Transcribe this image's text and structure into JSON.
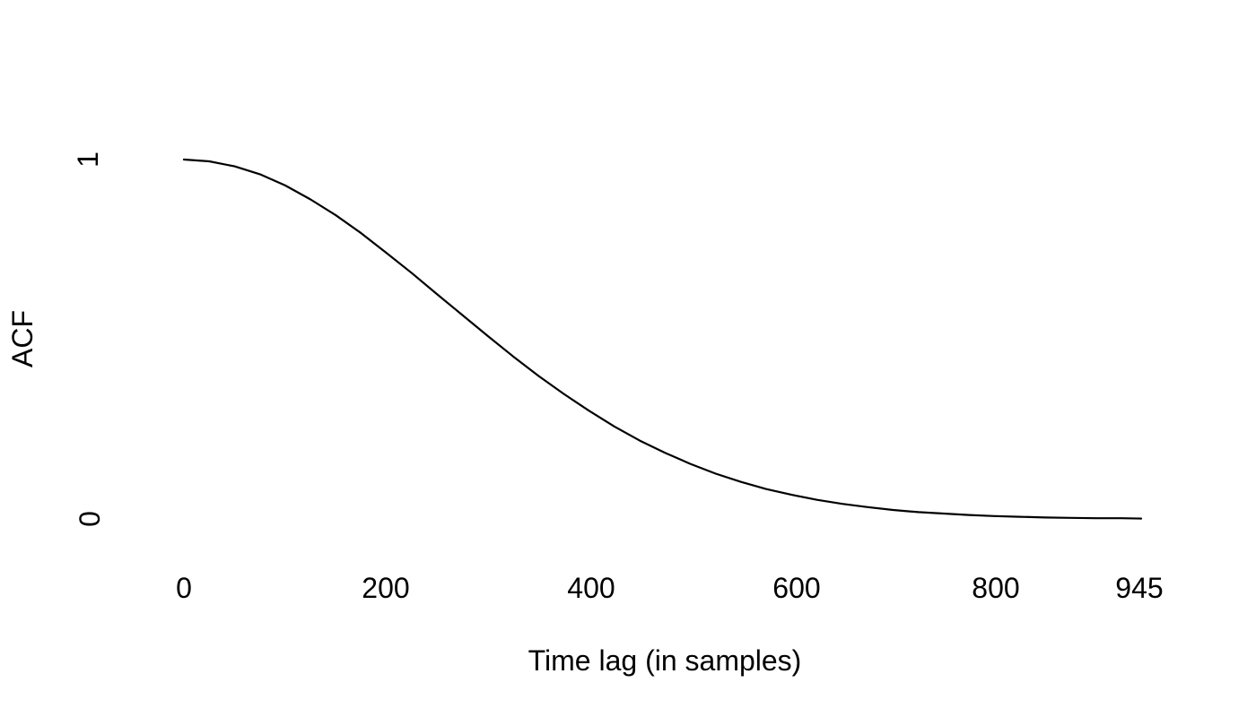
{
  "chart_data": {
    "type": "line",
    "title": "",
    "xlabel": "Time lag (in samples)",
    "ylabel": "ACF",
    "xlim": [
      0,
      945
    ],
    "ylim": [
      0,
      1
    ],
    "grid": false,
    "axis_lines": false,
    "tick_marks": false,
    "legend": null,
    "background_color": "#ffffff",
    "line_color": "#000000",
    "x_tick_labels": [
      "0",
      "200",
      "400",
      "600",
      "800",
      "945"
    ],
    "x_tick_values": [
      0,
      200,
      400,
      600,
      800,
      945
    ],
    "y_tick_labels": [
      "0",
      "1"
    ],
    "y_tick_values": [
      0,
      1
    ],
    "series": [
      {
        "name": "ACF",
        "x": [
          0,
          25,
          50,
          75,
          100,
          125,
          150,
          175,
          200,
          225,
          250,
          275,
          300,
          325,
          350,
          375,
          400,
          425,
          450,
          475,
          500,
          525,
          550,
          575,
          600,
          625,
          650,
          675,
          700,
          725,
          750,
          775,
          800,
          825,
          850,
          875,
          900,
          925,
          945
        ],
        "y": [
          1.0,
          0.995,
          0.981,
          0.959,
          0.928,
          0.889,
          0.845,
          0.795,
          0.74,
          0.684,
          0.625,
          0.567,
          0.509,
          0.452,
          0.398,
          0.348,
          0.301,
          0.257,
          0.218,
          0.184,
          0.153,
          0.126,
          0.103,
          0.083,
          0.067,
          0.053,
          0.042,
          0.033,
          0.025,
          0.019,
          0.015,
          0.011,
          0.008,
          0.006,
          0.004,
          0.003,
          0.002,
          0.002,
          0.001
        ]
      }
    ]
  }
}
